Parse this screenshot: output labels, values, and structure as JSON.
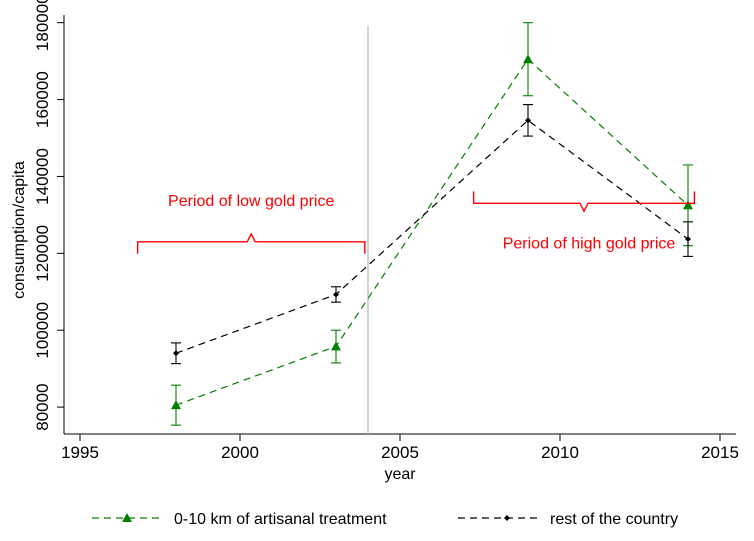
{
  "chart_data": {
    "type": "line",
    "xlabel": "year",
    "ylabel": "consumption/capita",
    "xlim": [
      1994.5,
      2015.5
    ],
    "ylim": [
      73000,
      182000
    ],
    "x_ticks": [
      1995,
      2000,
      2005,
      2010,
      2015
    ],
    "y_ticks": [
      80000,
      100000,
      120000,
      140000,
      160000,
      180000
    ],
    "grid": false,
    "vertical_reference_line": {
      "x": 2004,
      "color": "#bdbdbd"
    },
    "legend_position": "bottom",
    "series": [
      {
        "name": "0-10 km of artisanal treatment",
        "color": "#008000",
        "marker": "triangle",
        "line_style": "dashed",
        "x": [
          1998,
          2003,
          2009,
          2014
        ],
        "y": [
          80500,
          95800,
          170500,
          132500
        ],
        "ci_low": [
          75300,
          91500,
          161000,
          122000
        ],
        "ci_high": [
          85700,
          100000,
          180000,
          143000
        ]
      },
      {
        "name": "rest of the country",
        "color": "#000000",
        "marker": "diamond",
        "line_style": "dashed",
        "x": [
          1998,
          2003,
          2009,
          2014
        ],
        "y": [
          94000,
          109300,
          154600,
          123700
        ],
        "ci_low": [
          91300,
          107300,
          150500,
          119200
        ],
        "ci_high": [
          96700,
          111300,
          158700,
          128200
        ]
      }
    ],
    "annotations": [
      {
        "text": "Period of low gold price",
        "x_start": 1996.8,
        "x_end": 2003.9,
        "y": 123000,
        "text_position": "above",
        "color": "#ff0000"
      },
      {
        "text": "Period of high gold price",
        "x_start": 2007.3,
        "x_end": 2014.2,
        "y": 133000,
        "text_position": "below",
        "color": "#ff0000"
      }
    ]
  }
}
